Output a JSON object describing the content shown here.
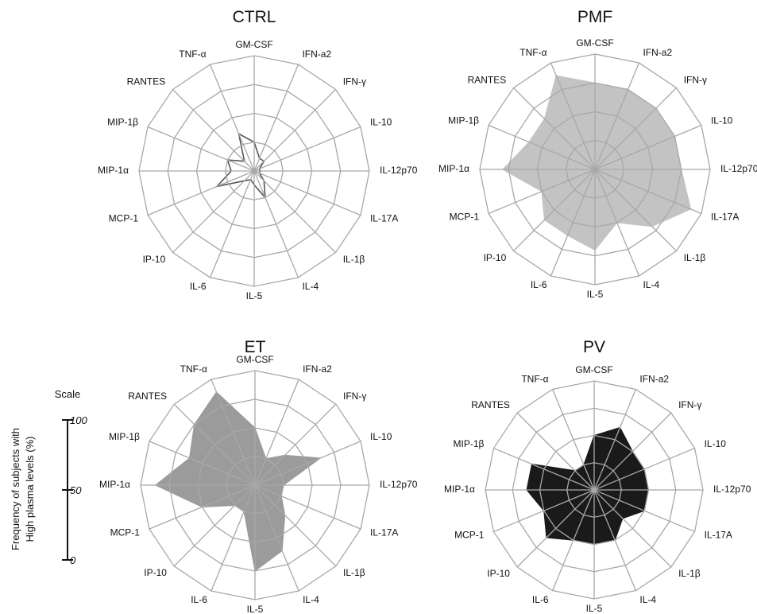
{
  "scale": {
    "title": "Scale",
    "ylabel_line1": "Frequency of subjects with",
    "ylabel_line2": "High plasma levels (%)",
    "ticks": [
      "100",
      "50",
      "0"
    ]
  },
  "chart_data": [
    {
      "type": "radar",
      "title": "CTRL",
      "categories": [
        "GM-CSF",
        "IFN-a2",
        "IFN-γ",
        "IL-10",
        "IL-12p70",
        "IL-17A",
        "IL-1β",
        "IL-4",
        "IL-5",
        "IL-6",
        "IP-10",
        "MCP-1",
        "MIP-1α",
        "MIP-1β",
        "RANTES",
        "TNF-α"
      ],
      "values": [
        25,
        12,
        12,
        5,
        5,
        5,
        12,
        25,
        12,
        8,
        12,
        35,
        20,
        25,
        12,
        35
      ],
      "range": [
        0,
        100
      ],
      "style": "outline",
      "color": "#555555"
    },
    {
      "type": "radar",
      "title": "PMF",
      "categories": [
        "GM-CSF",
        "IFN-a2",
        "IFN-γ",
        "IL-10",
        "IL-12p70",
        "IL-17A",
        "IL-1β",
        "IL-4",
        "IL-5",
        "IL-6",
        "IP-10",
        "MCP-1",
        "MIP-1α",
        "MIP-1β",
        "RANTES",
        "TNF-α"
      ],
      "values": [
        75,
        75,
        75,
        75,
        75,
        90,
        70,
        50,
        70,
        62,
        62,
        50,
        80,
        62,
        62,
        88
      ],
      "range": [
        0,
        100
      ],
      "style": "fill",
      "color": "#c3c3c3"
    },
    {
      "type": "radar",
      "title": "ET",
      "categories": [
        "GM-CSF",
        "IFN-a2",
        "IFN-γ",
        "IL-10",
        "IL-12p70",
        "IL-17A",
        "IL-1β",
        "IL-4",
        "IL-5",
        "IL-6",
        "IP-10",
        "MCP-1",
        "MIP-1α",
        "MIP-1β",
        "RANTES",
        "TNF-α"
      ],
      "values": [
        50,
        25,
        37,
        62,
        25,
        25,
        37,
        62,
        75,
        25,
        25,
        50,
        87,
        62,
        75,
        88
      ],
      "range": [
        0,
        100
      ],
      "style": "fill",
      "color": "#9b9b9b"
    },
    {
      "type": "radar",
      "title": "PV",
      "categories": [
        "GM-CSF",
        "IFN-a2",
        "IFN-γ",
        "IL-10",
        "IL-12p70",
        "IL-17A",
        "IL-1β",
        "IL-4",
        "IL-5",
        "IL-6",
        "IP-10",
        "MCP-1",
        "MIP-1α",
        "MIP-1β",
        "RANTES",
        "TNF-α"
      ],
      "values": [
        50,
        62,
        50,
        50,
        50,
        50,
        37,
        50,
        50,
        50,
        62,
        50,
        62,
        62,
        25,
        25
      ],
      "range": [
        0,
        100
      ],
      "style": "fill",
      "color": "#1a1a1a"
    }
  ]
}
